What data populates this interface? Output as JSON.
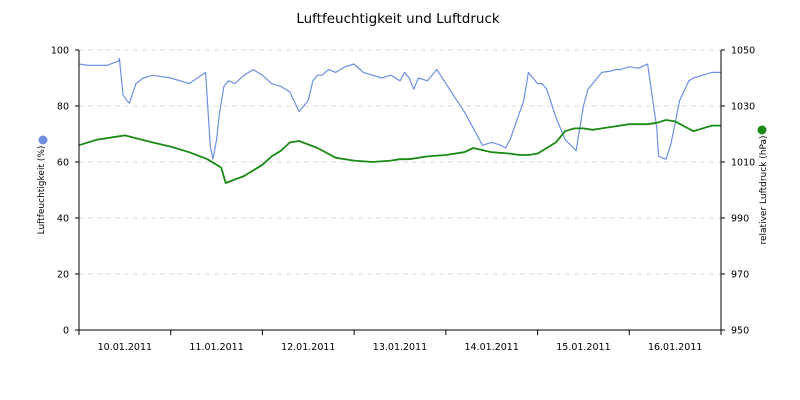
{
  "chart_data": {
    "type": "line",
    "title": "Luftfeuchtigkeit und Luftdruck",
    "ylabel": "Luftfeuchtigkeit (%)",
    "y2label": "relativer Luftdruck (hPa)",
    "ylim": [
      0,
      100
    ],
    "y2lim": [
      950,
      1050
    ],
    "yticks": [
      0,
      20,
      40,
      60,
      80,
      100
    ],
    "y2ticks": [
      950,
      970,
      990,
      1010,
      1030,
      1050
    ],
    "xlim": [
      0,
      7
    ],
    "x_tick_positions": [
      0.5,
      1.5,
      2.5,
      3.5,
      4.5,
      5.5,
      6.5
    ],
    "categories": [
      "10.01.2011",
      "11.01.2011",
      "12.01.2011",
      "13.01.2011",
      "14.01.2011",
      "15.01.2011",
      "16.01.2011"
    ],
    "x_unit": "days since 10.01.2011 00:00",
    "grid": "horizontal dashed",
    "legend": "colored dots beside each y-axis label",
    "series": [
      {
        "name": "Luftfeuchtigkeit (%)",
        "axis": "left",
        "color": "#6f8fe0",
        "x": [
          0,
          0.1,
          0.3,
          0.43,
          0.44,
          0.48,
          0.52,
          0.55,
          0.62,
          0.7,
          0.76,
          0.8,
          1.0,
          1.2,
          1.38,
          1.43,
          1.46,
          1.5,
          1.53,
          1.58,
          1.63,
          1.7,
          1.8,
          1.9,
          2.0,
          2.1,
          2.2,
          2.3,
          2.4,
          2.5,
          2.55,
          2.6,
          2.65,
          2.72,
          2.8,
          2.9,
          3.0,
          3.1,
          3.3,
          3.4,
          3.5,
          3.55,
          3.6,
          3.65,
          3.7,
          3.8,
          3.9,
          4.0,
          4.1,
          4.2,
          4.3,
          4.4,
          4.5,
          4.6,
          4.65,
          4.7,
          4.85,
          4.9,
          4.95,
          5.0,
          5.05,
          5.1,
          5.2,
          5.3,
          5.42,
          5.45,
          5.5,
          5.55,
          5.6,
          5.7,
          5.8,
          5.85,
          5.9,
          6.0,
          6.1,
          6.2,
          6.3,
          6.32,
          6.4,
          6.45,
          6.55,
          6.65,
          6.7,
          6.8,
          6.9,
          7.0
        ],
        "values": [
          95,
          94.5,
          94.5,
          96,
          97,
          84,
          82,
          81,
          88,
          90,
          90.5,
          91,
          90,
          88,
          92,
          66,
          61,
          68,
          77,
          87,
          89,
          88,
          91,
          93,
          91,
          88,
          87,
          85,
          78,
          82,
          89,
          91,
          91,
          93,
          92,
          94,
          95,
          92,
          90,
          91,
          89,
          92,
          90,
          86,
          90,
          89,
          93,
          88,
          83,
          78,
          72,
          66,
          67,
          66,
          65,
          68,
          82,
          92,
          90,
          88,
          88,
          86,
          76,
          68,
          64,
          70,
          80,
          86,
          88,
          92,
          92.5,
          93,
          93,
          94,
          93.5,
          95,
          72,
          62,
          61,
          66,
          82,
          89,
          90,
          91,
          92,
          92
        ]
      },
      {
        "name": "relativer Luftdruck (hPa)",
        "axis": "right",
        "color": "#1a8a14",
        "x": [
          0,
          0.2,
          0.4,
          0.5,
          0.8,
          1.0,
          1.2,
          1.4,
          1.55,
          1.6,
          1.8,
          2.0,
          2.1,
          2.2,
          2.3,
          2.4,
          2.6,
          2.8,
          3.0,
          3.2,
          3.4,
          3.5,
          3.6,
          3.8,
          4.0,
          4.2,
          4.3,
          4.5,
          4.7,
          4.8,
          4.9,
          5.0,
          5.2,
          5.3,
          5.4,
          5.5,
          5.6,
          5.7,
          5.8,
          6.0,
          6.2,
          6.3,
          6.4,
          6.5,
          6.7,
          6.9,
          7.0
        ],
        "values": [
          1016,
          1018,
          1019,
          1019.5,
          1017,
          1015.5,
          1013.5,
          1011,
          1008,
          1002.5,
          1005,
          1009,
          1012,
          1014,
          1017,
          1017.5,
          1015,
          1011.5,
          1010.5,
          1010,
          1010.5,
          1011,
          1011,
          1012,
          1012.5,
          1013.5,
          1015,
          1013.5,
          1013,
          1012.5,
          1012.5,
          1013,
          1017,
          1021,
          1022,
          1022,
          1021.5,
          1022,
          1022.5,
          1023.5,
          1023.5,
          1024,
          1025,
          1024.5,
          1021,
          1023,
          1023
        ]
      }
    ]
  }
}
